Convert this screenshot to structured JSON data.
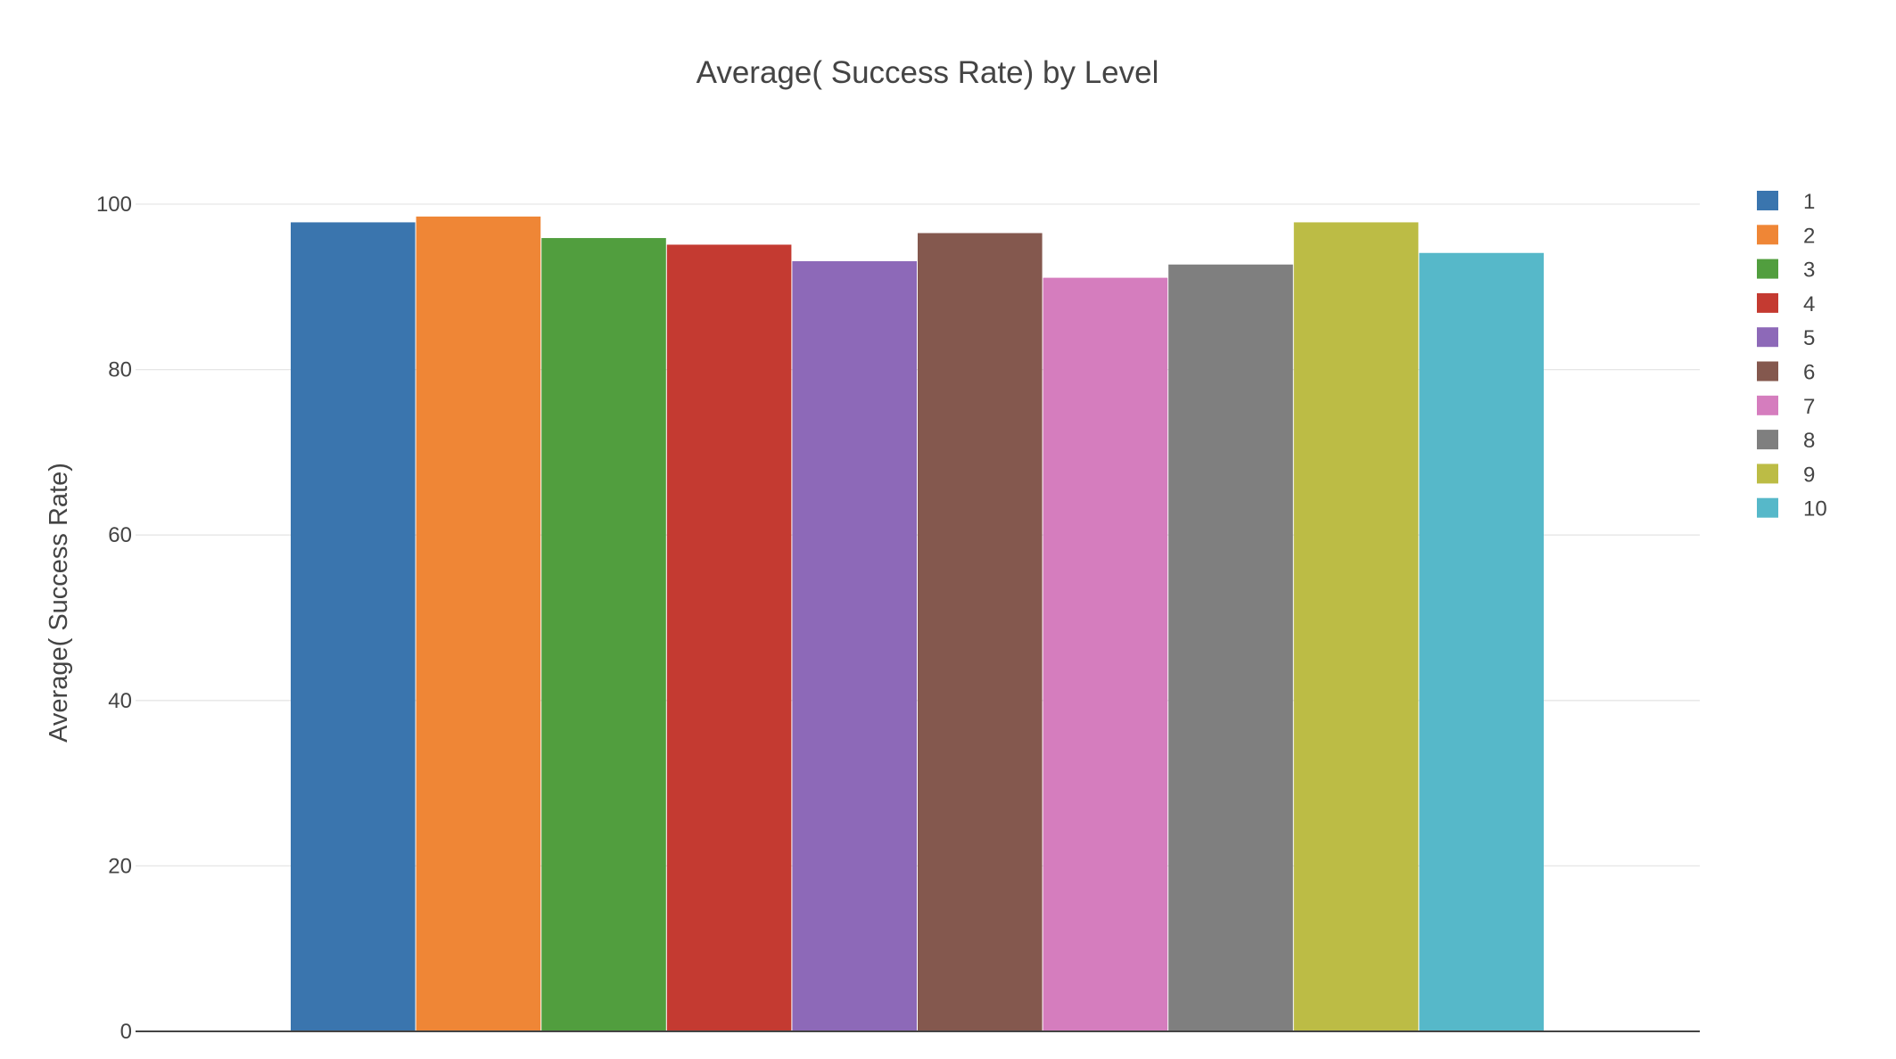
{
  "chart_data": {
    "type": "bar",
    "title": "Average( Success Rate) by Level",
    "xlabel": "",
    "ylabel": "Average( Success Rate)",
    "ylim": [
      0,
      100
    ],
    "yticks": [
      0,
      20,
      40,
      60,
      80,
      100
    ],
    "grid": true,
    "legend_position": "top-right",
    "series": [
      {
        "name": "1",
        "value": 97.8,
        "color": "#3a75ae"
      },
      {
        "name": "2",
        "value": 98.5,
        "color": "#ef8636"
      },
      {
        "name": "3",
        "value": 95.9,
        "color": "#519e3e"
      },
      {
        "name": "4",
        "value": 95.1,
        "color": "#c43a31"
      },
      {
        "name": "5",
        "value": 93.1,
        "color": "#8d69b8"
      },
      {
        "name": "6",
        "value": 96.5,
        "color": "#84584e"
      },
      {
        "name": "7",
        "value": 91.1,
        "color": "#d57dbe"
      },
      {
        "name": "8",
        "value": 92.7,
        "color": "#7f7f7f"
      },
      {
        "name": "9",
        "value": 97.8,
        "color": "#bcbc45"
      },
      {
        "name": "10",
        "value": 94.1,
        "color": "#56b8c9"
      }
    ]
  }
}
